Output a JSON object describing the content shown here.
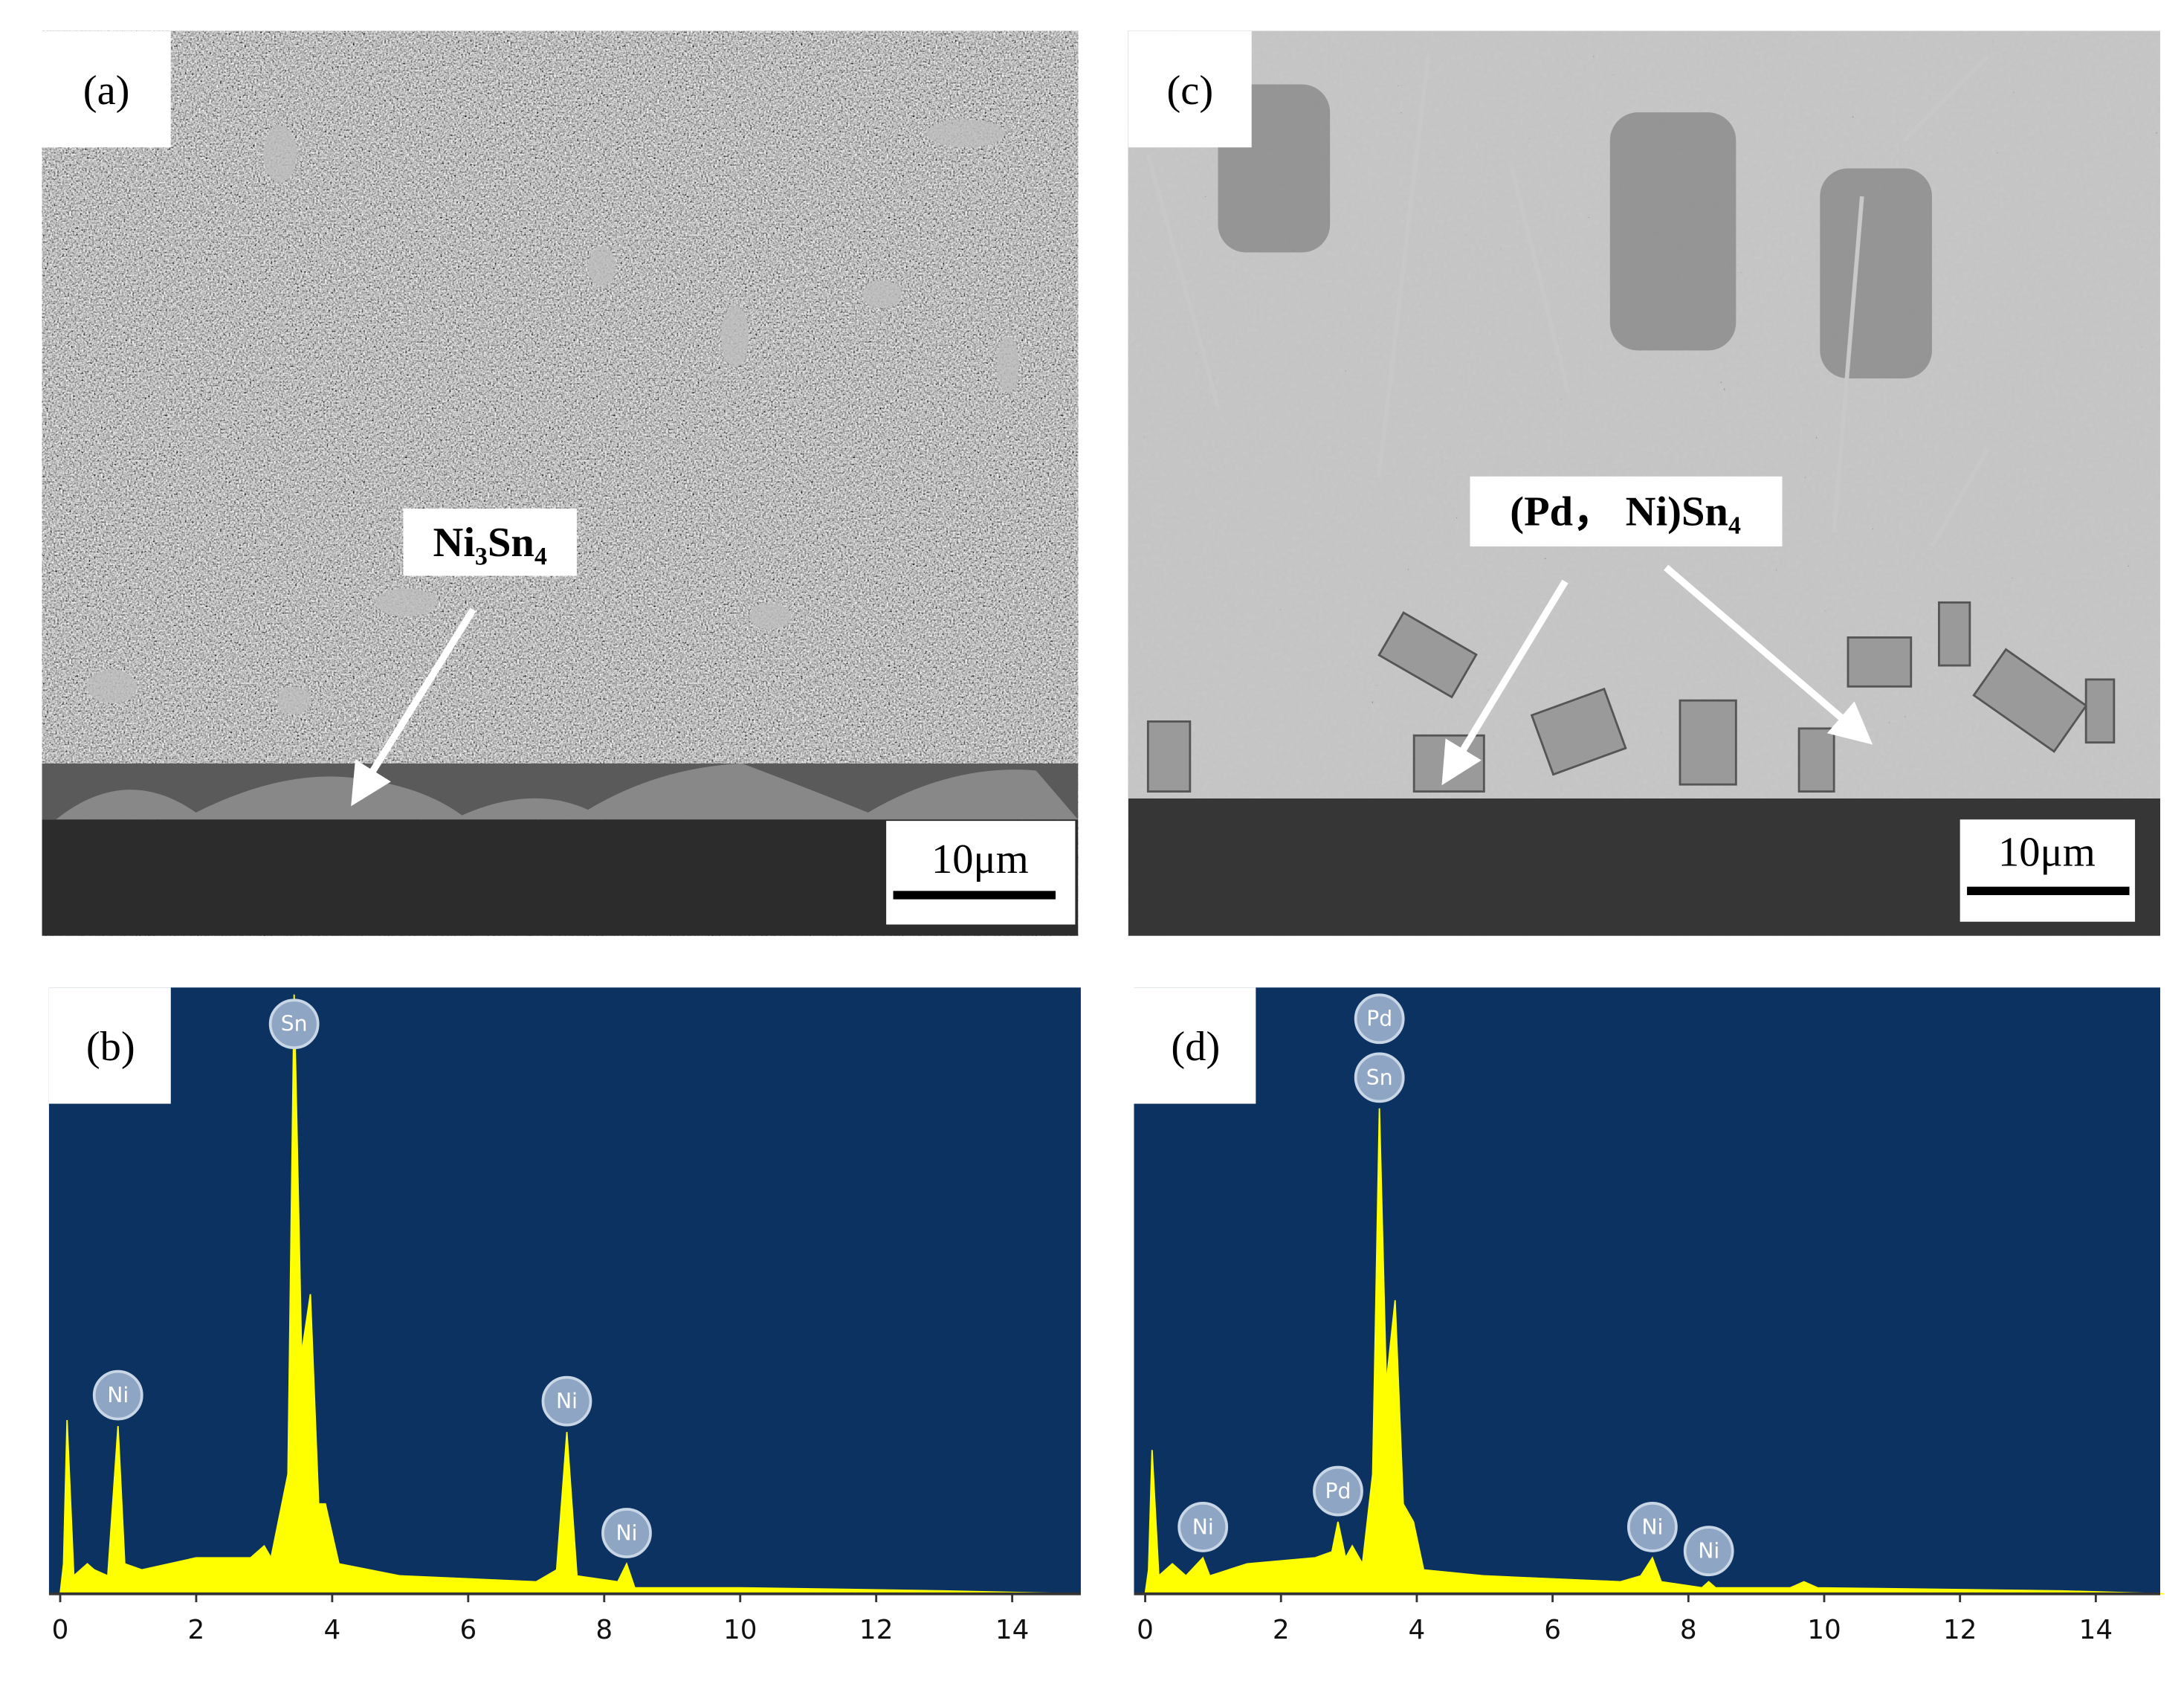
{
  "panels": [
    {
      "label": "(a)",
      "annotation": "Ni₃Sn₄",
      "scale_bar": "10μm"
    },
    {
      "label": "(c)",
      "annotation": "(Pd， Ni)Sn₄",
      "scale_bar": "10μm"
    }
  ],
  "chart_data": [
    {
      "type": "area",
      "label": "(b)",
      "color": "#ffff00",
      "background": "#0b3261",
      "xlim": [
        0,
        15
      ],
      "xticks": [
        0,
        2,
        4,
        6,
        8,
        10,
        12,
        14
      ],
      "ylim": [
        0,
        100
      ],
      "x": [
        0,
        0.05,
        0.1,
        0.2,
        0.4,
        0.5,
        0.7,
        0.85,
        0.95,
        1.2,
        2,
        2.8,
        3.0,
        3.1,
        3.35,
        3.44,
        3.55,
        3.68,
        3.8,
        3.9,
        4.1,
        5,
        7,
        7.3,
        7.45,
        7.6,
        8.2,
        8.33,
        8.45,
        10,
        13,
        15
      ],
      "values": [
        0,
        5,
        29,
        3,
        5,
        4,
        3,
        28,
        5,
        4,
        6,
        6,
        8,
        6,
        20,
        100,
        40,
        50,
        15,
        15,
        5,
        3,
        2,
        4,
        27,
        3,
        2,
        5,
        1,
        1,
        0.5,
        0
      ],
      "peaks": [
        {
          "text": "Sn",
          "x": 3.44
        },
        {
          "text": "Ni",
          "x": 0.85
        },
        {
          "text": "Ni",
          "x": 7.45
        },
        {
          "text": "Ni",
          "x": 8.33
        }
      ]
    },
    {
      "type": "area",
      "label": "(d)",
      "color": "#ffff00",
      "background": "#0b3261",
      "xlim": [
        0,
        15
      ],
      "xticks": [
        0,
        2,
        4,
        6,
        8,
        10,
        12,
        14
      ],
      "ylim": [
        0,
        100
      ],
      "x": [
        0,
        0.05,
        0.1,
        0.2,
        0.4,
        0.6,
        0.85,
        0.95,
        1.5,
        2.5,
        2.75,
        2.84,
        2.95,
        3.05,
        3.2,
        3.35,
        3.45,
        3.55,
        3.68,
        3.8,
        3.95,
        4.1,
        5,
        7,
        7.3,
        7.47,
        7.6,
        8.2,
        8.3,
        8.4,
        9.5,
        9.7,
        9.9,
        13.5,
        15
      ],
      "values": [
        0,
        4,
        24,
        3,
        5,
        3,
        6,
        3,
        5,
        6,
        7,
        12,
        6,
        8,
        5,
        20,
        81,
        35,
        49,
        15,
        12,
        4,
        3,
        2,
        3,
        6,
        2,
        1,
        2,
        1,
        1,
        2,
        1,
        0.5,
        0
      ],
      "peaks": [
        {
          "text": "Sn",
          "x": 3.45
        },
        {
          "text": "Pd",
          "x": 3.45
        },
        {
          "text": "Pd",
          "x": 2.84
        },
        {
          "text": "Ni",
          "x": 0.85
        },
        {
          "text": "Ni",
          "x": 7.47
        },
        {
          "text": "Ni",
          "x": 8.3
        }
      ]
    }
  ]
}
